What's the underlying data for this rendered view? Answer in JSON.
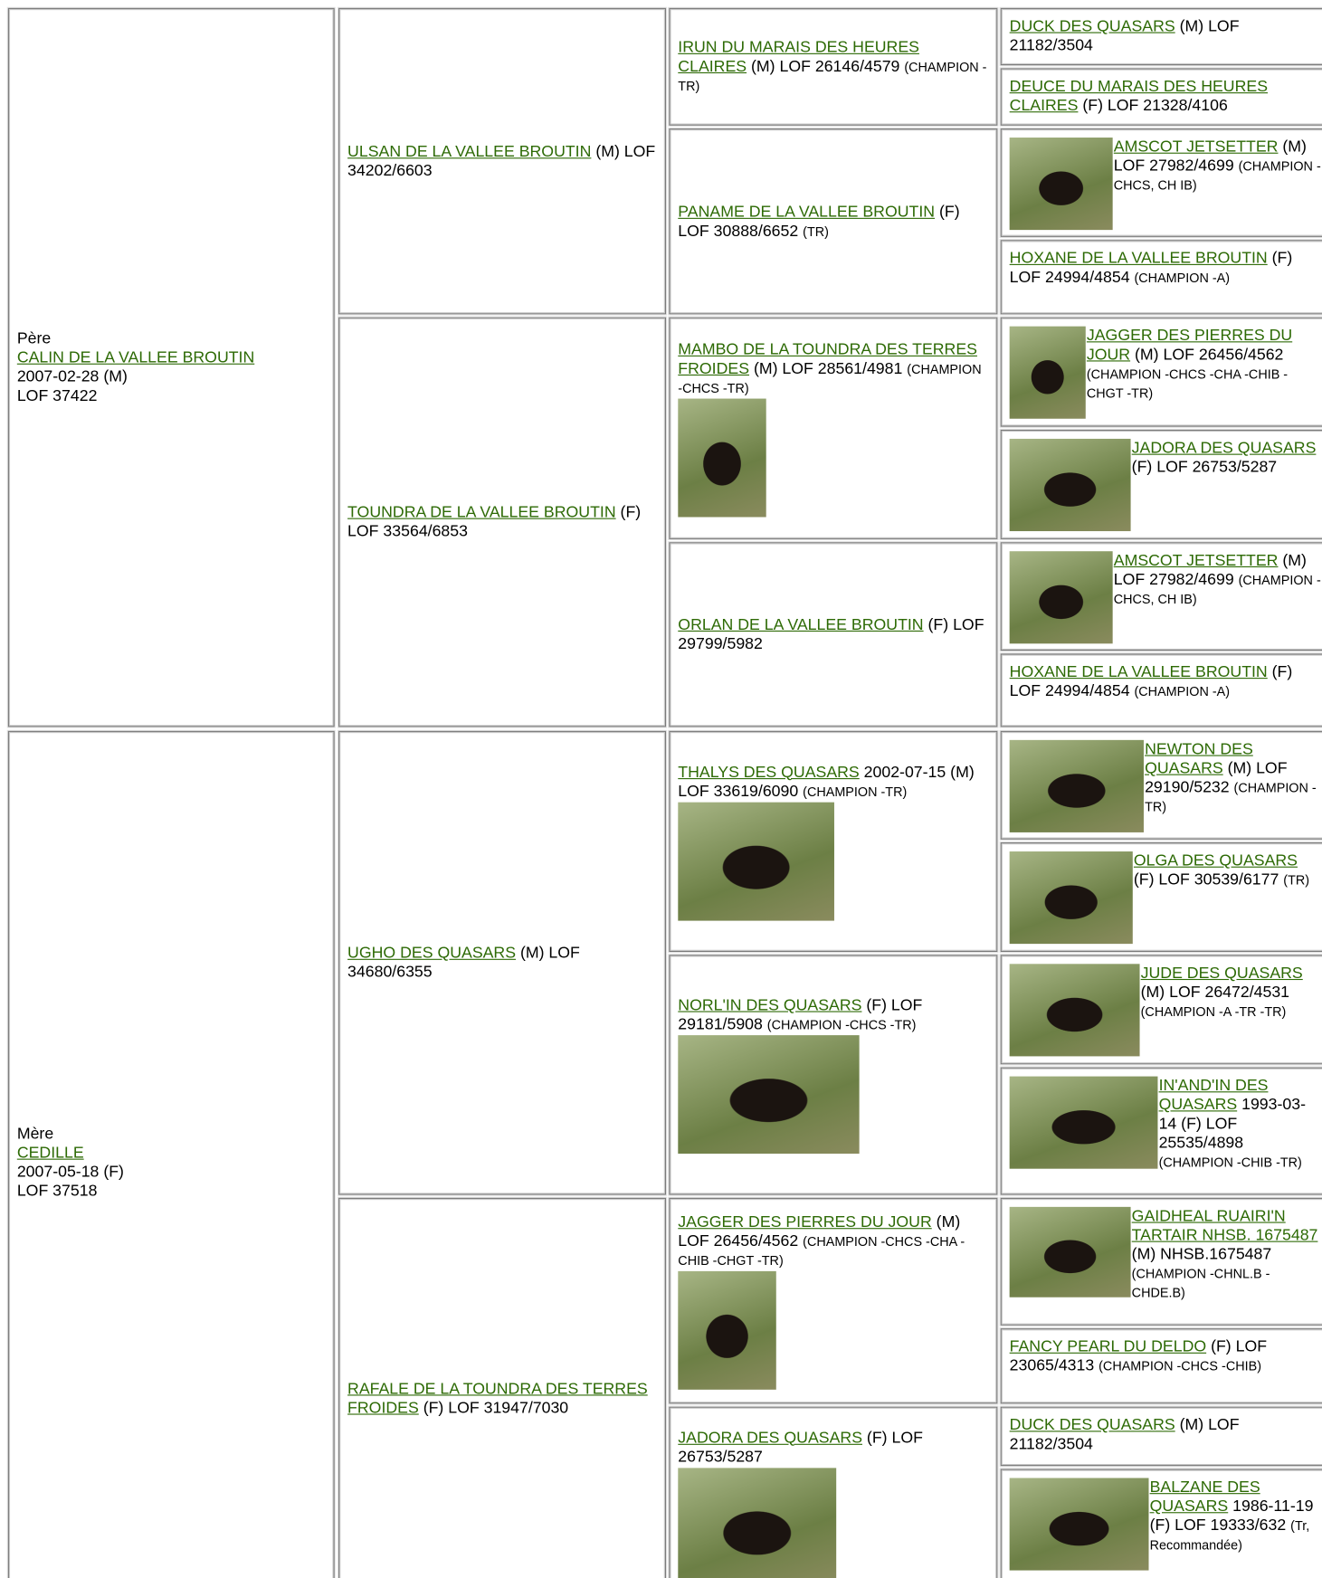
{
  "sire": {
    "label": "Père",
    "name": "CALIN DE LA VALLEE BROUTIN",
    "date_sex": "2007-02-28 (M)",
    "registration": "LOF 37422"
  },
  "dam": {
    "label": "Mère",
    "name": "CEDILLE",
    "date_sex": "2007-05-18 (F)",
    "registration": "LOF 37518"
  },
  "generation_2": [
    {
      "name": "ULSAN DE LA VALLEE BROUTIN",
      "details": "(M) LOF 34202/6603"
    },
    {
      "name": "TOUNDRA DE LA VALLEE BROUTIN",
      "details": "(F) LOF 33564/6853"
    },
    {
      "name": "UGHO DES QUASARS",
      "details": "(M) LOF 34680/6355"
    },
    {
      "name": "RAFALE DE LA TOUNDRA DES TERRES FROIDES",
      "details": "(F) LOF 31947/7030"
    }
  ],
  "generation_3": [
    {
      "name": "IRUN DU MARAIS DES HEURES CLAIRES",
      "details": "(M) LOF 26146/4579",
      "titles": "(CHAMPION -TR)"
    },
    {
      "name": "PANAME DE LA VALLEE BROUTIN",
      "details": "(F) LOF 30888/6652",
      "titles": "(TR)"
    },
    {
      "name": "MAMBO DE LA TOUNDRA DES TERRES FROIDES",
      "details": "(M) LOF 28561/4981",
      "titles": "(CHAMPION -CHCS -TR)"
    },
    {
      "name": "ORLAN DE LA VALLEE BROUTIN",
      "details": "(F) LOF 29799/5982"
    },
    {
      "name": "THALYS DES QUASARS",
      "details": "2002-07-15 (M) LOF 33619/6090",
      "titles": "(CHAMPION -TR)"
    },
    {
      "name": "NORL'IN DES QUASARS",
      "details": "(F) LOF 29181/5908",
      "titles": "(CHAMPION -CHCS -TR)"
    },
    {
      "name": "JAGGER DES PIERRES DU JOUR",
      "details": "(M) LOF 26456/4562",
      "titles": "(CHAMPION -CHCS -CHA -CHIB -CHGT -TR)"
    },
    {
      "name": "JADORA DES QUASARS",
      "details": "(F) LOF 26753/5287"
    }
  ],
  "generation_4": [
    {
      "name": "DUCK DES QUASARS",
      "details": "(M) LOF 21182/3504"
    },
    {
      "name": "DEUCE DU MARAIS DES HEURES CLAIRES",
      "details": "(F) LOF 21328/4106"
    },
    {
      "name": "AMSCOT JETSETTER",
      "details": "(M) LOF 27982/4699",
      "titles": "(CHAMPION -CHCS, CH IB)"
    },
    {
      "name": "HOXANE DE LA VALLEE BROUTIN",
      "details": "(F) LOF 24994/4854",
      "titles": "(CHAMPION -A)"
    },
    {
      "name": "JAGGER DES PIERRES DU JOUR",
      "details": "(M) LOF 26456/4562",
      "titles": "(CHAMPION -CHCS -CHA -CHIB -CHGT -TR)"
    },
    {
      "name": "JADORA DES QUASARS",
      "details": "(F) LOF 26753/5287"
    },
    {
      "name": "AMSCOT JETSETTER",
      "details": "(M) LOF 27982/4699",
      "titles": "(CHAMPION -CHCS, CH IB)"
    },
    {
      "name": "HOXANE DE LA VALLEE BROUTIN",
      "details": "(F) LOF 24994/4854",
      "titles": "(CHAMPION -A)"
    },
    {
      "name": "NEWTON DES QUASARS",
      "details": "(M) LOF 29190/5232",
      "titles": "(CHAMPION -TR)"
    },
    {
      "name": "OLGA DES QUASARS",
      "details": "(F) LOF 30539/6177",
      "titles": "(TR)"
    },
    {
      "name": "JUDE DES QUASARS",
      "details": "(M) LOF 26472/4531",
      "titles": "(CHAMPION -A -TR -TR)"
    },
    {
      "name": "IN'AND'IN DES QUASARS",
      "details": "1993-03-14 (F) LOF 25535/4898",
      "titles": "(CHAMPION -CHIB -TR)"
    },
    {
      "name": "GAIDHEAL RUAIRI'N TARTAIR NHSB. 1675487",
      "details": "(M) NHSB.1675487",
      "titles": "(CHAMPION -CHNL.B -CHDE.B)"
    },
    {
      "name": "FANCY PEARL DU DELDO",
      "details": "(F) LOF 23065/4313",
      "titles": "(CHAMPION -CHCS -CHIB)"
    },
    {
      "name": "DUCK DES QUASARS",
      "details": "(M) LOF 21182/3504"
    },
    {
      "name": "BALZANE DES QUASARS",
      "details": "1986-11-19 (F) LOF 19333/632",
      "titles": "(Tr, Recommandée)"
    }
  ]
}
